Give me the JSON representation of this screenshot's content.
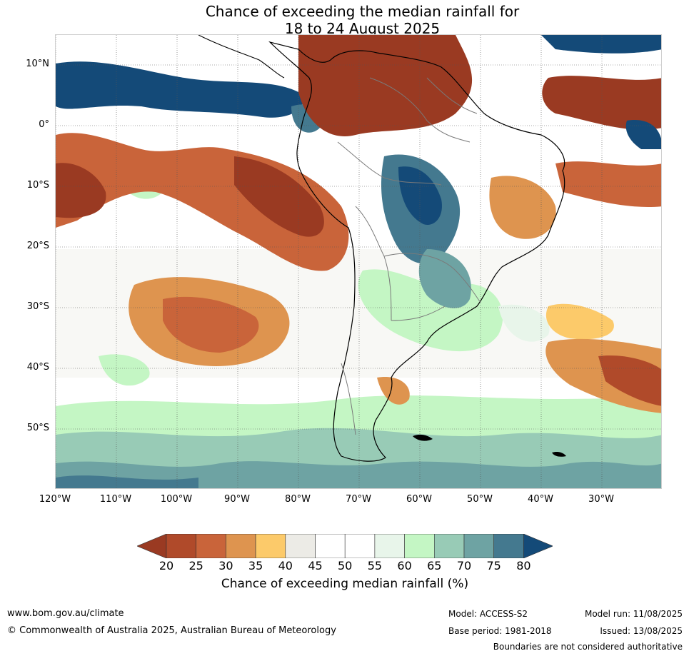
{
  "title": {
    "line1": "Chance of exceeding the median rainfall for",
    "line2": "18 to 24 August 2025"
  },
  "map": {
    "latitude_labels": [
      "10°N",
      "0°",
      "10°S",
      "20°S",
      "30°S",
      "40°S",
      "50°S"
    ],
    "longitude_labels": [
      "120°W",
      "110°W",
      "100°W",
      "90°W",
      "80°W",
      "70°W",
      "60°W",
      "50°W",
      "40°W",
      "30°W"
    ]
  },
  "legend": {
    "ticks": [
      "20",
      "25",
      "30",
      "35",
      "40",
      "45",
      "50",
      "55",
      "60",
      "65",
      "70",
      "75",
      "80"
    ],
    "colors": [
      "#9a3a22",
      "#b04a2a",
      "#c9643a",
      "#de944f",
      "#fcca6a",
      "#ecebe6",
      "#ffffff",
      "#ffffff",
      "#e8f5ea",
      "#c4f6c4",
      "#98cbb6",
      "#6ea3a3",
      "#44798f",
      "#144a78"
    ],
    "label": "Chance of exceeding median rainfall (%)"
  },
  "footer": {
    "url": "www.bom.gov.au/climate",
    "copyright": "© Commonwealth of Australia 2025, Australian Bureau of Meteorology",
    "model": "Model: ACCESS-S2",
    "base_period": "Base period: 1981-2018",
    "model_run": "Model run: 11/08/2025",
    "issued": "Issued: 13/08/2025",
    "disclaimer": "Boundaries are not considered authoritative"
  }
}
